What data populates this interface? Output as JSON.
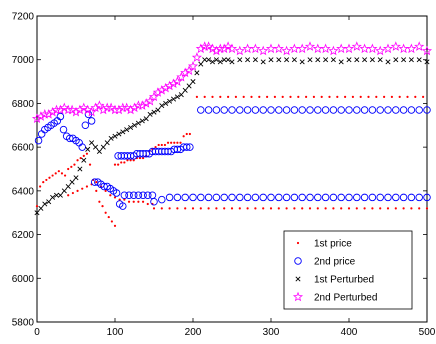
{
  "chart_data": {
    "type": "scatter",
    "title": "",
    "xlabel": "",
    "ylabel": "",
    "xlim": [
      0,
      500
    ],
    "ylim": [
      5800,
      7200
    ],
    "xticks": [
      0,
      100,
      200,
      300,
      400,
      500
    ],
    "yticks": [
      5800,
      6000,
      6200,
      6400,
      6600,
      6800,
      7000,
      7200
    ],
    "xtick_labels": [
      "0",
      "100",
      "200",
      "300",
      "400",
      "500"
    ],
    "ytick_labels": [
      "5800",
      "6000",
      "6200",
      "6400",
      "6600",
      "6800",
      "7000",
      "7200"
    ],
    "grid": false,
    "legend_position": "lower-right",
    "series": [
      {
        "name": "1st price",
        "marker": "dot",
        "color": "#ff0000",
        "x": [
          0,
          4,
          8,
          12,
          16,
          20,
          24,
          28,
          32,
          36,
          40,
          44,
          48,
          52,
          56,
          60,
          64,
          68,
          72,
          76,
          80,
          84,
          88,
          92,
          96,
          100,
          100,
          104,
          108,
          112,
          116,
          120,
          124,
          128,
          132,
          136,
          140,
          144,
          148,
          152,
          156,
          160,
          164,
          168,
          172,
          176,
          180,
          184,
          188,
          192,
          196,
          40,
          46,
          52,
          58,
          64,
          70,
          76,
          82,
          88,
          94,
          100,
          106,
          112,
          118,
          124,
          130,
          136,
          142,
          148,
          150,
          160,
          170,
          180,
          190,
          200,
          210,
          220,
          230,
          240,
          250,
          260,
          270,
          280,
          290,
          300,
          310,
          320,
          330,
          340,
          350,
          360,
          370,
          380,
          390,
          400,
          410,
          420,
          430,
          440,
          450,
          460,
          470,
          480,
          490,
          500,
          205,
          215,
          225,
          235,
          245,
          255,
          265,
          275,
          285,
          295,
          305,
          315,
          325,
          335,
          345,
          355,
          365,
          375,
          385,
          395,
          405,
          415,
          425,
          435,
          445,
          455,
          465,
          475,
          485,
          495
        ],
        "y": [
          6330,
          6420,
          6440,
          6450,
          6460,
          6470,
          6480,
          6490,
          6480,
          6470,
          6500,
          6510,
          6520,
          6540,
          6550,
          6560,
          6570,
          6520,
          6450,
          6400,
          6350,
          6330,
          6300,
          6280,
          6260,
          6240,
          6520,
          6520,
          6530,
          6530,
          6540,
          6540,
          6540,
          6550,
          6550,
          6550,
          6560,
          6580,
          6590,
          6600,
          6610,
          6610,
          6610,
          6620,
          6620,
          6620,
          6620,
          6620,
          6650,
          6660,
          6660,
          6380,
          6390,
          6400,
          6410,
          6420,
          6430,
          6440,
          6420,
          6400,
          6380,
          6370,
          6360,
          6360,
          6350,
          6350,
          6350,
          6350,
          6340,
          6340,
          6320,
          6320,
          6320,
          6320,
          6320,
          6320,
          6320,
          6320,
          6320,
          6320,
          6320,
          6320,
          6320,
          6320,
          6320,
          6320,
          6320,
          6320,
          6320,
          6320,
          6320,
          6320,
          6320,
          6320,
          6320,
          6320,
          6320,
          6320,
          6320,
          6320,
          6320,
          6320,
          6320,
          6320,
          6320,
          6320,
          6830,
          6830,
          6830,
          6830,
          6830,
          6830,
          6830,
          6830,
          6830,
          6830,
          6830,
          6830,
          6830,
          6830,
          6830,
          6830,
          6830,
          6830,
          6830,
          6830,
          6830,
          6830,
          6830,
          6830,
          6830,
          6830,
          6830,
          6830,
          6830,
          6830
        ]
      },
      {
        "name": "2nd price",
        "marker": "circle",
        "color": "#0000ff",
        "x": [
          2,
          6,
          10,
          14,
          18,
          22,
          26,
          30,
          34,
          38,
          42,
          46,
          50,
          54,
          58,
          62,
          66,
          70,
          74,
          78,
          82,
          86,
          90,
          94,
          98,
          102,
          106,
          110,
          104,
          108,
          112,
          116,
          120,
          124,
          128,
          132,
          136,
          140,
          144,
          148,
          152,
          156,
          160,
          164,
          168,
          172,
          176,
          180,
          184,
          188,
          192,
          196,
          112,
          118,
          124,
          130,
          136,
          142,
          148,
          150,
          160,
          170,
          180,
          190,
          200,
          210,
          220,
          230,
          240,
          250,
          260,
          270,
          280,
          290,
          300,
          310,
          320,
          330,
          340,
          350,
          360,
          370,
          380,
          390,
          400,
          410,
          420,
          430,
          440,
          450,
          460,
          470,
          480,
          490,
          500,
          210,
          220,
          230,
          240,
          250,
          260,
          270,
          280,
          290,
          300,
          310,
          320,
          330,
          340,
          350,
          360,
          370,
          380,
          390,
          400,
          410,
          420,
          430,
          440,
          450,
          460,
          470,
          480,
          490,
          500
        ],
        "y": [
          6630,
          6660,
          6680,
          6690,
          6700,
          6710,
          6720,
          6740,
          6680,
          6650,
          6640,
          6640,
          6630,
          6620,
          6600,
          6700,
          6750,
          6720,
          6440,
          6440,
          6430,
          6420,
          6420,
          6410,
          6400,
          6390,
          6340,
          6330,
          6560,
          6560,
          6560,
          6560,
          6560,
          6560,
          6570,
          6570,
          6570,
          6570,
          6570,
          6580,
          6580,
          6580,
          6580,
          6580,
          6580,
          6580,
          6590,
          6590,
          6590,
          6600,
          6600,
          6600,
          6380,
          6380,
          6380,
          6380,
          6380,
          6380,
          6380,
          6350,
          6360,
          6370,
          6370,
          6370,
          6370,
          6370,
          6370,
          6370,
          6370,
          6370,
          6370,
          6370,
          6370,
          6370,
          6370,
          6370,
          6370,
          6370,
          6370,
          6370,
          6370,
          6370,
          6370,
          6370,
          6370,
          6370,
          6370,
          6370,
          6370,
          6370,
          6370,
          6370,
          6370,
          6370,
          6370,
          6770,
          6770,
          6770,
          6770,
          6770,
          6770,
          6770,
          6770,
          6770,
          6770,
          6770,
          6770,
          6770,
          6770,
          6770,
          6770,
          6770,
          6770,
          6770,
          6770,
          6770,
          6770,
          6770,
          6770,
          6770,
          6770,
          6770,
          6770,
          6770,
          6770
        ]
      },
      {
        "name": "1st Perturbed",
        "marker": "x",
        "color": "#000000",
        "x": [
          0,
          5,
          10,
          15,
          20,
          25,
          30,
          35,
          40,
          45,
          50,
          55,
          60,
          65,
          70,
          75,
          80,
          85,
          90,
          95,
          100,
          105,
          110,
          115,
          120,
          125,
          130,
          135,
          140,
          145,
          150,
          155,
          160,
          165,
          170,
          175,
          180,
          185,
          190,
          195,
          200,
          205,
          210,
          215,
          220,
          225,
          230,
          235,
          240,
          245,
          250,
          260,
          270,
          280,
          290,
          300,
          310,
          320,
          330,
          340,
          350,
          360,
          370,
          380,
          390,
          400,
          410,
          420,
          430,
          440,
          450,
          460,
          470,
          480,
          490,
          500
        ],
        "y": [
          6300,
          6320,
          6340,
          6350,
          6370,
          6380,
          6380,
          6400,
          6420,
          6440,
          6460,
          6500,
          6540,
          6590,
          6620,
          6600,
          6580,
          6600,
          6620,
          6640,
          6650,
          6660,
          6670,
          6680,
          6690,
          6700,
          6710,
          6720,
          6730,
          6750,
          6760,
          6770,
          6790,
          6800,
          6810,
          6820,
          6830,
          6840,
          6860,
          6880,
          6900,
          6940,
          6980,
          7000,
          7000,
          6990,
          7000,
          6990,
          7000,
          7000,
          6990,
          7000,
          7000,
          7000,
          6990,
          7000,
          7000,
          7000,
          7000,
          6990,
          7000,
          7000,
          7000,
          7000,
          6990,
          7000,
          7000,
          7000,
          7000,
          7000,
          6990,
          7000,
          7000,
          7000,
          7000,
          6990
        ]
      },
      {
        "name": "2nd Perturbed",
        "marker": "star",
        "color": "#ff00ff",
        "x": [
          0,
          5,
          10,
          15,
          20,
          25,
          30,
          35,
          40,
          45,
          50,
          55,
          60,
          65,
          70,
          75,
          80,
          85,
          90,
          95,
          100,
          105,
          110,
          115,
          120,
          125,
          130,
          135,
          140,
          145,
          150,
          155,
          160,
          165,
          170,
          175,
          180,
          185,
          190,
          195,
          200,
          205,
          210,
          215,
          220,
          225,
          230,
          235,
          240,
          245,
          250,
          260,
          270,
          280,
          290,
          300,
          310,
          320,
          330,
          340,
          350,
          360,
          370,
          380,
          390,
          400,
          410,
          420,
          430,
          440,
          450,
          460,
          470,
          480,
          490,
          500
        ],
        "y": [
          6730,
          6740,
          6750,
          6750,
          6760,
          6770,
          6770,
          6780,
          6770,
          6770,
          6760,
          6770,
          6780,
          6770,
          6760,
          6780,
          6790,
          6770,
          6780,
          6780,
          6770,
          6770,
          6780,
          6780,
          6770,
          6780,
          6790,
          6790,
          6800,
          6810,
          6830,
          6850,
          6860,
          6870,
          6880,
          6890,
          6900,
          6920,
          6940,
          6950,
          6970,
          7010,
          7050,
          7060,
          7060,
          7050,
          7040,
          7050,
          7050,
          7060,
          7050,
          7040,
          7050,
          7050,
          7040,
          7050,
          7050,
          7040,
          7050,
          7050,
          7060,
          7050,
          7050,
          7040,
          7050,
          7050,
          7060,
          7050,
          7050,
          7040,
          7050,
          7060,
          7050,
          7050,
          7060,
          7040
        ]
      }
    ]
  }
}
